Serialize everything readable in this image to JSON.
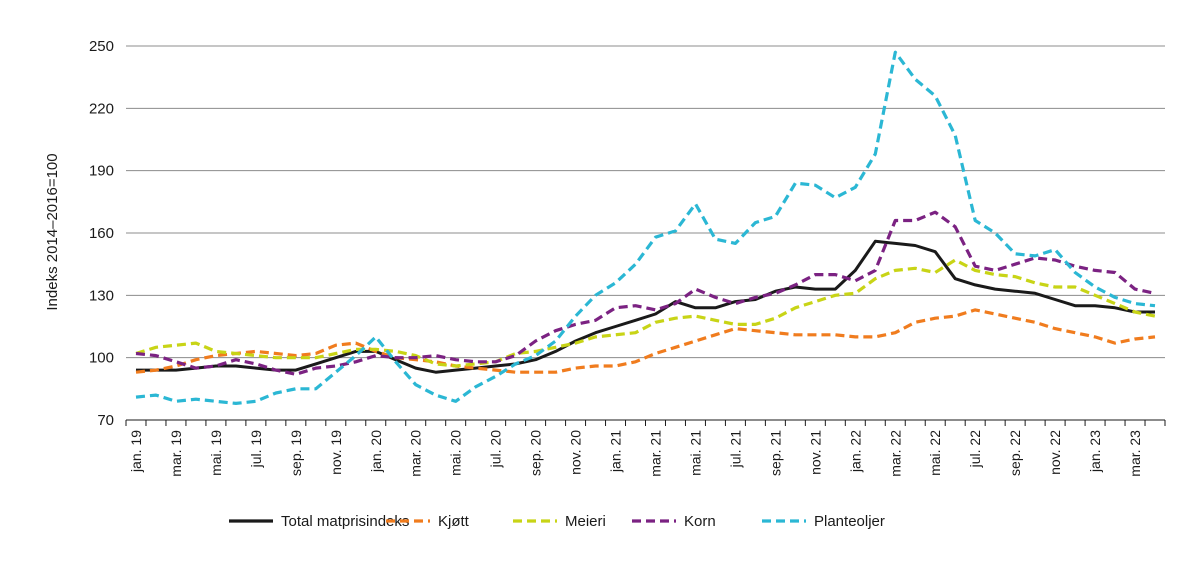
{
  "chart_data": {
    "type": "line",
    "ylabel": "Indeks 2014–2016=100",
    "ylim": [
      70,
      250
    ],
    "yticks": [
      70,
      100,
      130,
      160,
      190,
      220,
      250
    ],
    "grid": true,
    "legend_position": "bottom",
    "x": [
      "jan. 19",
      "feb. 19",
      "mar. 19",
      "apr. 19",
      "mai. 19",
      "jun. 19",
      "jul. 19",
      "aug. 19",
      "sep. 19",
      "okt. 19",
      "nov. 19",
      "des. 19",
      "jan. 20",
      "feb. 20",
      "mar. 20",
      "apr. 20",
      "mai. 20",
      "jun. 20",
      "jul. 20",
      "aug. 20",
      "sep. 20",
      "okt. 20",
      "nov. 20",
      "des. 20",
      "jan. 21",
      "feb. 21",
      "mar. 21",
      "apr. 21",
      "mai. 21",
      "jun. 21",
      "jul. 21",
      "aug. 21",
      "sep. 21",
      "okt. 21",
      "nov. 21",
      "des. 21",
      "jan. 22",
      "feb. 22",
      "mar. 22",
      "apr. 22",
      "mai. 22",
      "jun. 22",
      "jul. 22",
      "aug. 22",
      "sep. 22",
      "okt. 22",
      "nov. 22",
      "des. 22",
      "jan. 23",
      "feb. 23",
      "mar. 23",
      "apr. 23"
    ],
    "x_tick_labels": [
      "jan. 19",
      "mar. 19",
      "mai. 19",
      "jul. 19",
      "sep. 19",
      "nov. 19",
      "jan. 20",
      "mar. 20",
      "mai. 20",
      "jul. 20",
      "sep. 20",
      "nov. 20",
      "jan. 21",
      "mar. 21",
      "mai. 21",
      "jul. 21",
      "sep. 21",
      "nov. 21",
      "jan. 22",
      "mar. 22",
      "mai. 22",
      "jul. 22",
      "sep. 22",
      "nov. 22",
      "jan. 23",
      "mar. 23"
    ],
    "series": [
      {
        "name": "Total matprisindeks",
        "color": "#1a1a1a",
        "dash": "solid",
        "values": [
          94,
          94,
          94,
          95,
          96,
          96,
          95,
          94,
          94,
          97,
          100,
          103,
          103,
          99,
          95,
          93,
          94,
          95,
          96,
          97,
          99,
          103,
          108,
          112,
          115,
          118,
          121,
          127,
          124,
          124,
          127,
          128,
          132,
          134,
          133,
          133,
          142,
          156,
          155,
          154,
          151,
          138,
          135,
          133,
          132,
          131,
          128,
          125,
          125,
          124,
          122,
          122
        ]
      },
      {
        "name": "Kjøtt",
        "color": "#f07c1e",
        "dash": "dashed",
        "values": [
          93,
          94,
          96,
          99,
          101,
          102,
          103,
          102,
          101,
          102,
          106,
          107,
          103,
          100,
          99,
          98,
          96,
          95,
          94,
          93,
          93,
          93,
          95,
          96,
          96,
          98,
          102,
          105,
          108,
          111,
          114,
          113,
          112,
          111,
          111,
          111,
          110,
          110,
          112,
          117,
          119,
          120,
          123,
          121,
          119,
          117,
          114,
          112,
          110,
          107,
          109,
          110
        ]
      },
      {
        "name": "Meieri",
        "color": "#c8d416",
        "dash": "dashed",
        "values": [
          102,
          105,
          106,
          107,
          103,
          102,
          101,
          100,
          100,
          100,
          102,
          104,
          104,
          103,
          101,
          97,
          96,
          97,
          98,
          102,
          103,
          105,
          107,
          110,
          111,
          112,
          117,
          119,
          120,
          118,
          116,
          116,
          119,
          124,
          127,
          130,
          131,
          138,
          142,
          143,
          141,
          147,
          142,
          140,
          139,
          136,
          134,
          134,
          130,
          126,
          122,
          120
        ]
      },
      {
        "name": "Korn",
        "color": "#7b2282",
        "dash": "dashed",
        "values": [
          102,
          101,
          98,
          95,
          96,
          99,
          97,
          94,
          92,
          95,
          96,
          98,
          101,
          100,
          100,
          101,
          99,
          98,
          98,
          101,
          108,
          113,
          116,
          118,
          124,
          125,
          123,
          126,
          133,
          129,
          126,
          129,
          131,
          135,
          140,
          140,
          137,
          142,
          166,
          166,
          170,
          163,
          144,
          142,
          145,
          148,
          147,
          144,
          142,
          141,
          133,
          131
        ]
      },
      {
        "name": "Planteoljer",
        "color": "#2bb7d4",
        "dash": "dashed",
        "values": [
          81,
          82,
          79,
          80,
          79,
          78,
          79,
          83,
          85,
          85,
          93,
          101,
          110,
          98,
          87,
          82,
          79,
          86,
          91,
          97,
          101,
          108,
          120,
          130,
          136,
          145,
          158,
          161,
          174,
          157,
          155,
          165,
          168,
          184,
          183,
          177,
          182,
          198,
          247,
          234,
          226,
          207,
          166,
          160,
          150,
          149,
          152,
          141,
          134,
          129,
          126,
          125
        ]
      }
    ]
  }
}
